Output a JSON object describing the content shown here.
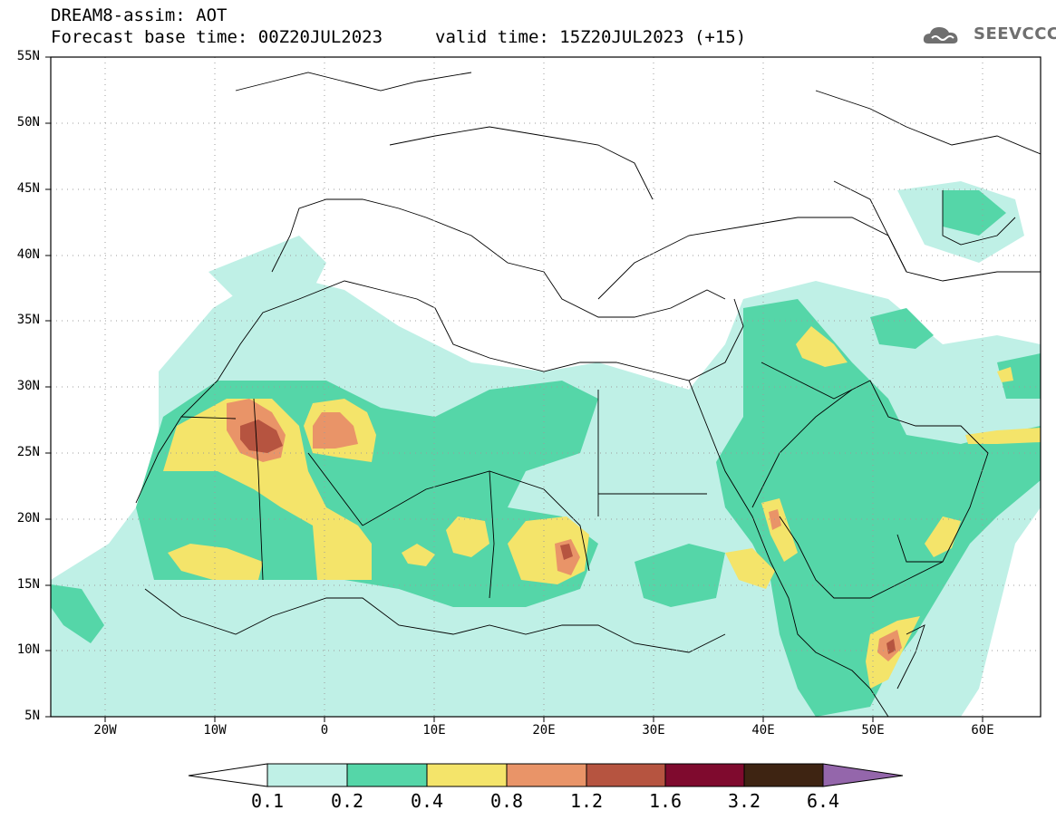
{
  "header": {
    "title_line1": "DREAM8-assim: AOT",
    "title_line2": "Forecast base time: 00Z20JUL2023",
    "valid_time": "valid time: 15Z20JUL2023 (+15)",
    "logo_text": "SEEVCCC"
  },
  "map": {
    "projection": "lat-lon",
    "lon_range": [
      -25,
      65
    ],
    "lat_range": [
      5,
      55
    ],
    "lat_labels": [
      "55N",
      "50N",
      "45N",
      "40N",
      "35N",
      "30N",
      "25N",
      "20N",
      "15N",
      "10N",
      "5N"
    ],
    "lon_labels": [
      "20W",
      "10W",
      "0",
      "10E",
      "20E",
      "30E",
      "40E",
      "50E",
      "60E"
    ],
    "grid": "dotted"
  },
  "colorbar": {
    "labels": [
      "0.1",
      "0.2",
      "0.4",
      "0.8",
      "1.2",
      "1.6",
      "3.2",
      "6.4"
    ],
    "colors": [
      "#ffffff",
      "#bff0e6",
      "#55d6a8",
      "#f4e46a",
      "#e99468",
      "#b65440",
      "#7f0a2e",
      "#3e2412",
      "#9466ab"
    ]
  }
}
